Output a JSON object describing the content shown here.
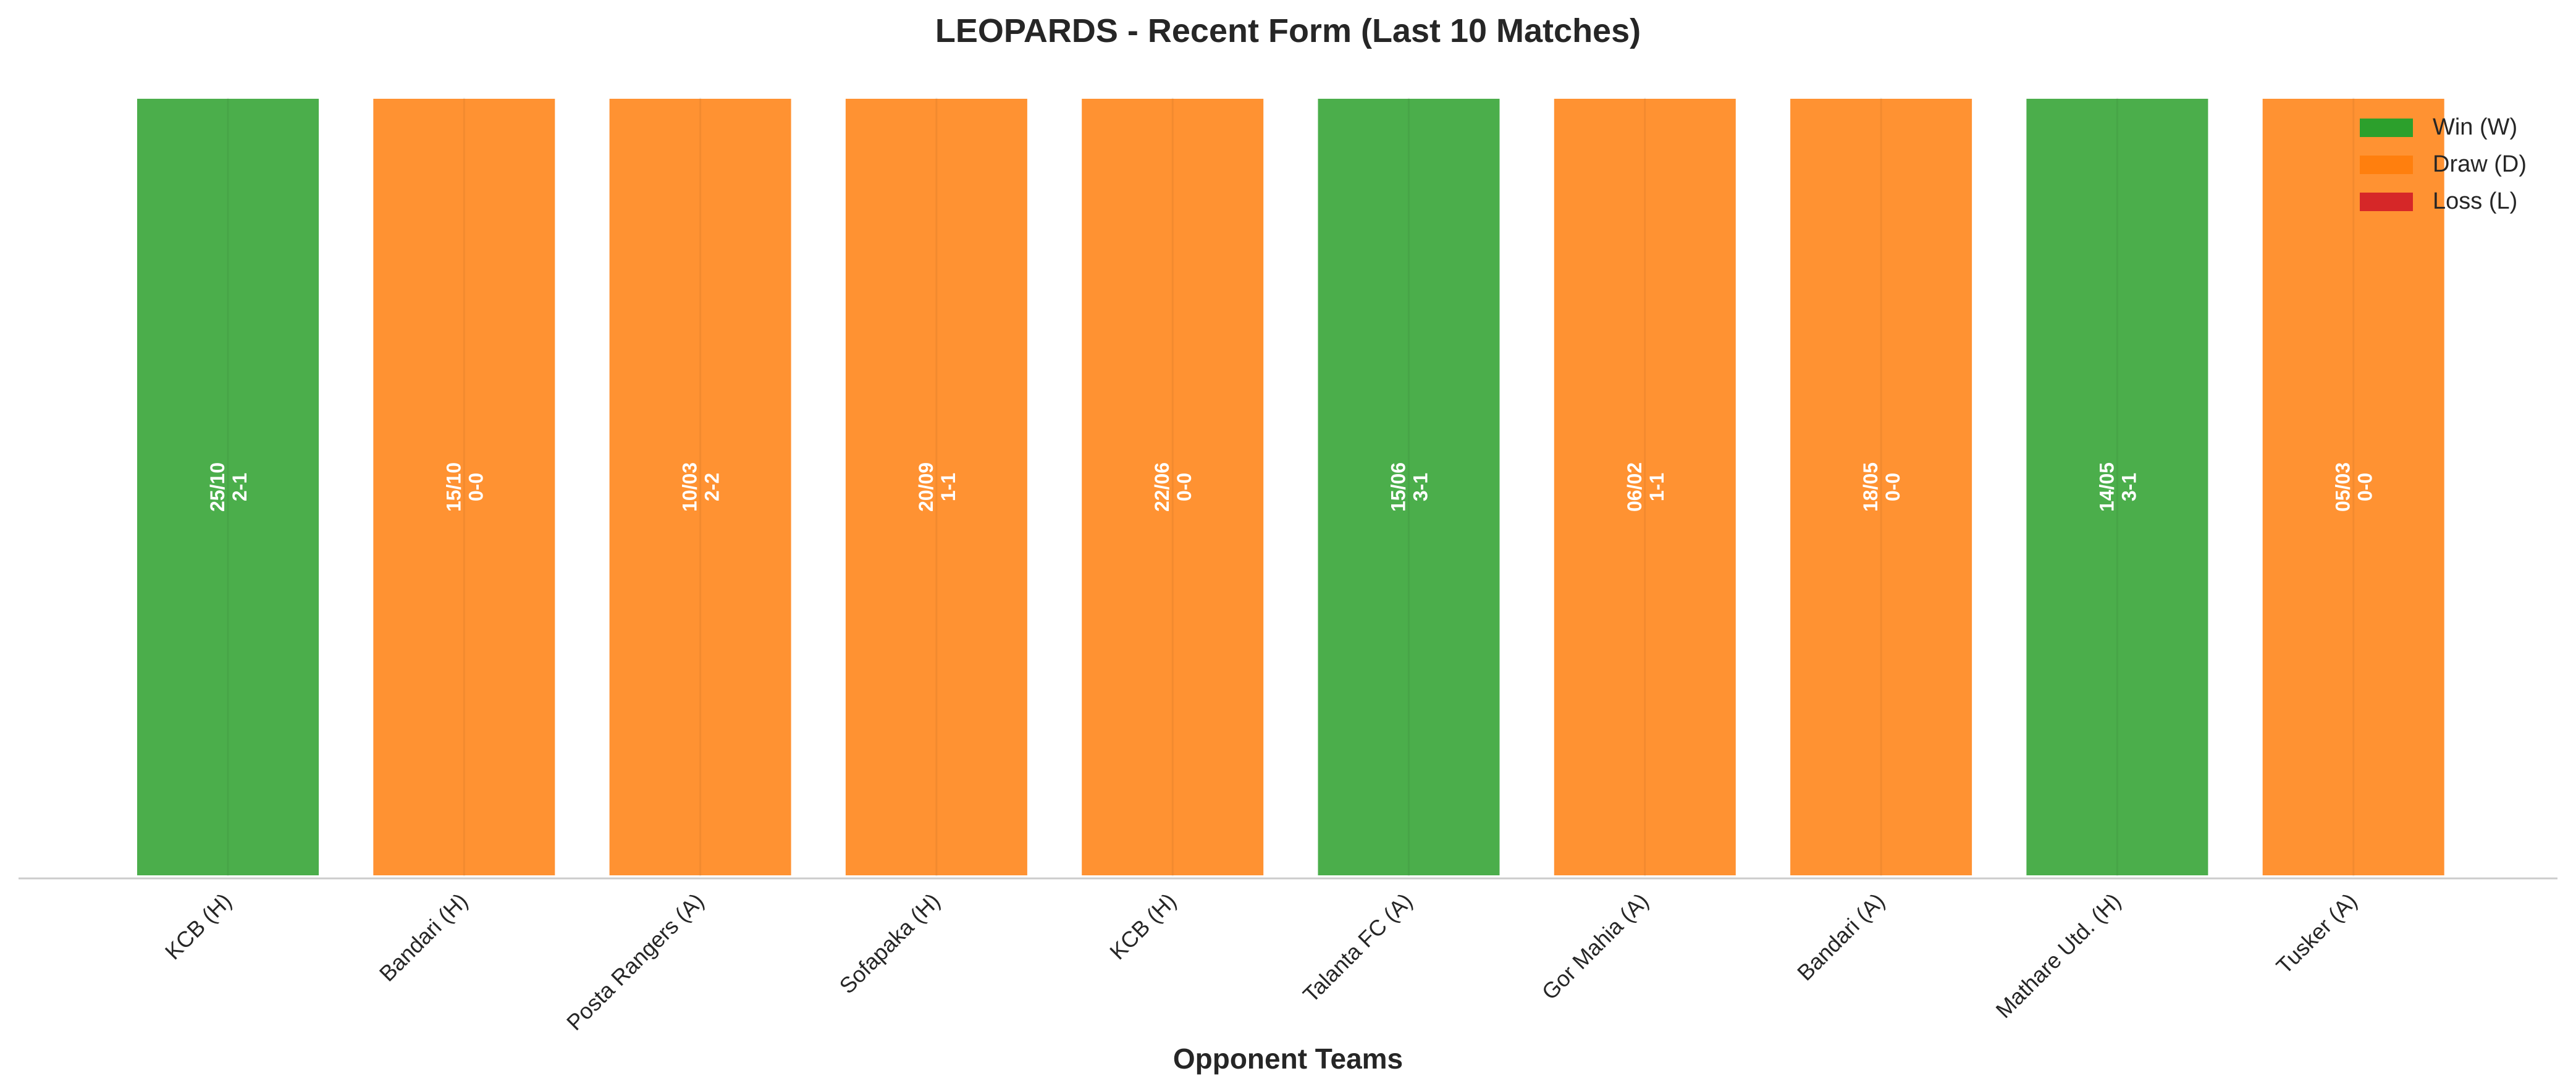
{
  "chart_data": {
    "type": "bar",
    "title": "LEOPARDS - Recent Form (Last 10 Matches)",
    "xlabel": "Opponent Teams",
    "ylabel": "",
    "ylim": [
      0,
      1
    ],
    "grid": false,
    "legend_position": "top-right",
    "categories": [
      "KCB (H)",
      "Bandari (H)",
      "Posta Rangers (A)",
      "Sofapaka (H)",
      "KCB (H)",
      "Talanta FC (A)",
      "Gor Mahia (A)",
      "Bandari (A)",
      "Mathare Utd. (H)",
      "Tusker (A)"
    ],
    "values": [
      1,
      1,
      1,
      1,
      1,
      1,
      1,
      1,
      1,
      1
    ],
    "results": [
      "W",
      "D",
      "D",
      "D",
      "D",
      "W",
      "D",
      "D",
      "W",
      "D"
    ],
    "dates": [
      "25/10",
      "15/10",
      "10/03",
      "20/09",
      "22/06",
      "15/06",
      "06/02",
      "18/05",
      "14/05",
      "05/03"
    ],
    "scores": [
      "2-1",
      "0-0",
      "2-2",
      "1-1",
      "0-0",
      "3-1",
      "1-1",
      "0-0",
      "3-1",
      "0-0"
    ],
    "legend": [
      {
        "key": "W",
        "label": "Win (W)",
        "color": "#2ca02c"
      },
      {
        "key": "D",
        "label": "Draw (D)",
        "color": "#ff7f0e"
      },
      {
        "key": "L",
        "label": "Loss (L)",
        "color": "#d62728"
      }
    ]
  }
}
